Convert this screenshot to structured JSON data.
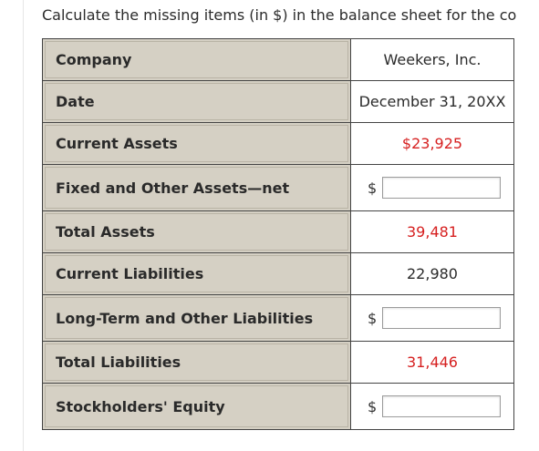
{
  "question": {
    "text": "Calculate the missing items (in $) in the balance sheet for the co"
  },
  "rows": [
    {
      "label": "Company",
      "value": "Weekers, Inc."
    },
    {
      "label": "Date",
      "value": "December 31, 20XX"
    },
    {
      "label": "Current Assets",
      "value": "$23,925"
    },
    {
      "label": "Fixed and Other Assets—net",
      "currency": "$",
      "input_value": ""
    },
    {
      "label": "Total Assets",
      "value": "39,481"
    },
    {
      "label": "Current Liabilities",
      "value": "22,980"
    },
    {
      "label": "Long-Term and Other Liabilities",
      "currency": "$",
      "input_value": ""
    },
    {
      "label": "Total Liabilities",
      "value": "31,446"
    },
    {
      "label": "Stockholders' Equity",
      "currency": "$",
      "input_value": ""
    }
  ],
  "colors": {
    "label_background": "#d5d0c4",
    "given_value_red": "#d62020",
    "border": "#444444"
  }
}
